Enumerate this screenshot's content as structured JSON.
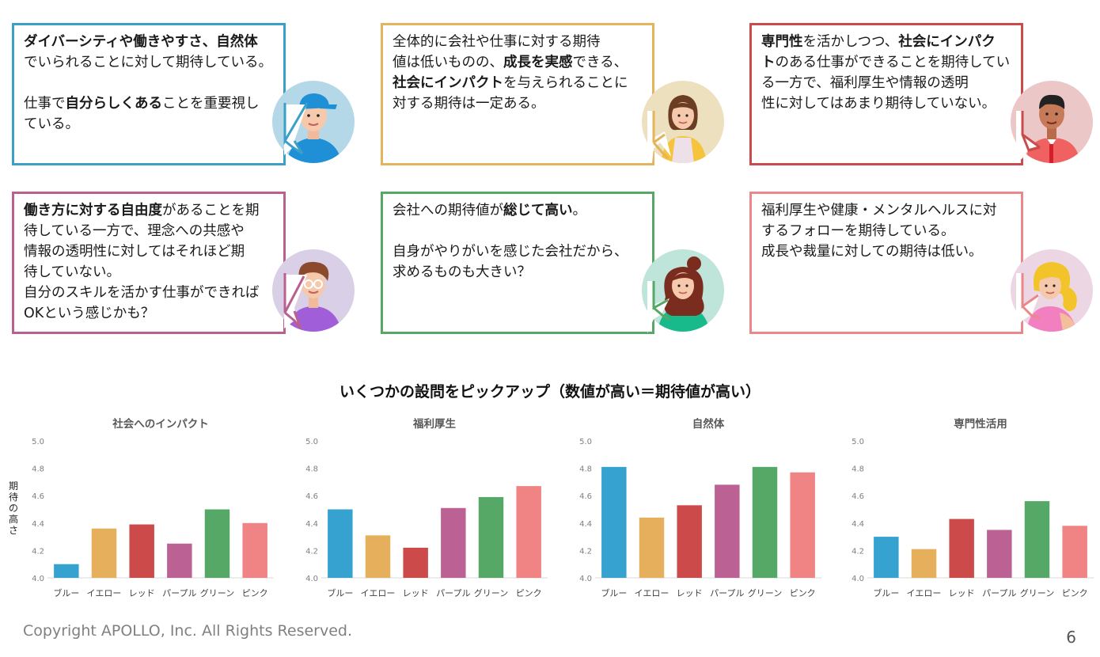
{
  "cards": [
    {
      "color": "blue",
      "border": "#3aa0c8",
      "lines": [
        [
          {
            "t": "ダイバーシティや働きやすさ、自然体",
            "b": true
          }
        ],
        [
          {
            "t": "でいられることに対して期待している。",
            "b": false
          }
        ],
        [],
        [
          {
            "t": "仕事で",
            "b": false
          },
          {
            "t": "自分らしくある",
            "b": true
          },
          {
            "t": "ことを重要視し",
            "b": false
          }
        ],
        [
          {
            "t": "ている。",
            "b": false
          }
        ]
      ]
    },
    {
      "color": "yellow",
      "border": "#e3b45a",
      "lines": [
        [
          {
            "t": "全体的に会社や仕事に対する期待",
            "b": false
          }
        ],
        [
          {
            "t": "値は低いものの、",
            "b": false
          },
          {
            "t": "成長を実感",
            "b": true
          },
          {
            "t": "できる、",
            "b": false
          }
        ],
        [
          {
            "t": "社会にインパクト",
            "b": true
          },
          {
            "t": "を与えられることに",
            "b": false
          }
        ],
        [
          {
            "t": "対する期待は一定ある。",
            "b": false
          }
        ]
      ]
    },
    {
      "color": "red",
      "border": "#c94b4b",
      "lines": [
        [
          {
            "t": "専門性",
            "b": true
          },
          {
            "t": "を活かしつつ、",
            "b": false
          },
          {
            "t": "社会にインパク",
            "b": true
          }
        ],
        [
          {
            "t": "ト",
            "b": true
          },
          {
            "t": "のある仕事ができることを期待してい",
            "b": false
          }
        ],
        [
          {
            "t": "る一方で、福利厚生や情報の透明",
            "b": false
          }
        ],
        [
          {
            "t": "性に対してはあまり期待していない。",
            "b": false
          }
        ]
      ]
    },
    {
      "color": "purple",
      "border": "#b9608f",
      "lines": [
        [
          {
            "t": "働き方に対する自由度",
            "b": true
          },
          {
            "t": "があることを期",
            "b": false
          }
        ],
        [
          {
            "t": "待している一方で、理念への共感や",
            "b": false
          }
        ],
        [
          {
            "t": "情報の透明性に対してはそれほど期",
            "b": false
          }
        ],
        [
          {
            "t": "待していない。",
            "b": false
          }
        ],
        [
          {
            "t": "自分のスキルを活かす仕事ができれば",
            "b": false
          }
        ],
        [
          {
            "t": "OKという感じかも？",
            "b": false
          }
        ]
      ]
    },
    {
      "color": "green",
      "border": "#57a866",
      "lines": [
        [
          {
            "t": "会社への期待値が",
            "b": false
          },
          {
            "t": "総じて高い",
            "b": true
          },
          {
            "t": "。",
            "b": false
          }
        ],
        [],
        [
          {
            "t": "自身がやりがいを感じた会社だから、",
            "b": false
          }
        ],
        [
          {
            "t": "求めるものも大きい？",
            "b": false
          }
        ]
      ]
    },
    {
      "color": "pink",
      "border": "#e9878a",
      "lines": [
        [
          {
            "t": "福利厚生や健康・メンタルヘルスに対",
            "b": false
          }
        ],
        [
          {
            "t": "するフォローを期待している。",
            "b": false
          }
        ],
        [
          {
            "t": "成長や裁量に対しての期待は低い。",
            "b": false
          }
        ]
      ]
    }
  ],
  "section_title": "いくつかの設問をピックアップ（数値が高い＝期待値が高い）",
  "y_axis_label": "期待の高さ",
  "chart_data": [
    {
      "type": "bar",
      "title": "社会へのインパクト",
      "categories": [
        "ブルー",
        "イエロー",
        "レッド",
        "パープル",
        "グリーン",
        "ピンク"
      ],
      "values": [
        4.1,
        4.36,
        4.39,
        4.25,
        4.5,
        4.4
      ],
      "colors": [
        "#35a2cf",
        "#e5af5c",
        "#cc4a4a",
        "#bb6193",
        "#56a867",
        "#f08383"
      ],
      "ylim": [
        4.0,
        5.0
      ],
      "yticks": [
        "4.0",
        "4.2",
        "4.4",
        "4.6",
        "4.8",
        "5.0"
      ],
      "ylabel": "期待の高さ",
      "grid": false
    },
    {
      "type": "bar",
      "title": "福利厚生",
      "categories": [
        "ブルー",
        "イエロー",
        "レッド",
        "パープル",
        "グリーン",
        "ピンク"
      ],
      "values": [
        4.5,
        4.31,
        4.22,
        4.51,
        4.59,
        4.67
      ],
      "colors": [
        "#35a2cf",
        "#e5af5c",
        "#cc4a4a",
        "#bb6193",
        "#56a867",
        "#f08383"
      ],
      "ylim": [
        4.0,
        5.0
      ],
      "yticks": [
        "4.0",
        "4.2",
        "4.4",
        "4.6",
        "4.8",
        "5.0"
      ],
      "grid": false
    },
    {
      "type": "bar",
      "title": "自然体",
      "categories": [
        "ブルー",
        "イエロー",
        "レッド",
        "パープル",
        "グリーン",
        "ピンク"
      ],
      "values": [
        4.81,
        4.44,
        4.53,
        4.68,
        4.81,
        4.77
      ],
      "colors": [
        "#35a2cf",
        "#e5af5c",
        "#cc4a4a",
        "#bb6193",
        "#56a867",
        "#f08383"
      ],
      "ylim": [
        4.0,
        5.0
      ],
      "yticks": [
        "4.0",
        "4.2",
        "4.4",
        "4.6",
        "4.8",
        "5.0"
      ],
      "grid": false
    },
    {
      "type": "bar",
      "title": "専門性活用",
      "categories": [
        "ブルー",
        "イエロー",
        "レッド",
        "パープル",
        "グリーン",
        "ピンク"
      ],
      "values": [
        4.3,
        4.21,
        4.43,
        4.35,
        4.56,
        4.38
      ],
      "colors": [
        "#35a2cf",
        "#e5af5c",
        "#cc4a4a",
        "#bb6193",
        "#56a867",
        "#f08383"
      ],
      "ylim": [
        4.0,
        5.0
      ],
      "yticks": [
        "4.0",
        "4.2",
        "4.4",
        "4.6",
        "4.8",
        "5.0"
      ],
      "grid": false
    }
  ],
  "footer": "Copyright APOLLO, Inc. All Rights Reserved.",
  "page_number": "6"
}
